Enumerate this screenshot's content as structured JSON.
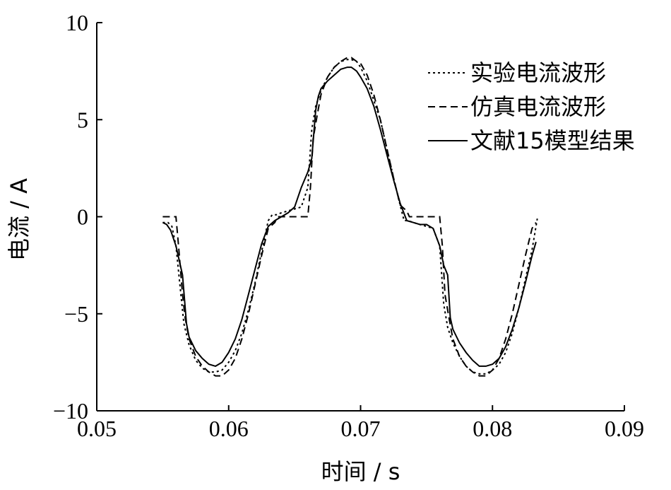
{
  "chart_data": {
    "type": "line",
    "xlabel": "时间 / s",
    "ylabel": "电流 / A",
    "xlim": [
      0.05,
      0.09
    ],
    "ylim": [
      -10,
      10
    ],
    "xticks": [
      0.05,
      0.06,
      0.07,
      0.08,
      0.09
    ],
    "xtick_labels": [
      "0.05",
      "0.06",
      "0.07",
      "0.08",
      "0.09"
    ],
    "yticks": [
      -10,
      -5,
      0,
      5,
      10
    ],
    "ytick_labels": [
      "−10",
      "−5",
      "0",
      "5",
      "10"
    ],
    "grid": false,
    "legend_position": "top-right",
    "series": [
      {
        "name": "实验电流波形",
        "style": "dotted",
        "x": [
          0.055,
          0.0554,
          0.0557,
          0.056,
          0.0563,
          0.0566,
          0.057,
          0.0575,
          0.058,
          0.0585,
          0.059,
          0.0595,
          0.06,
          0.0605,
          0.061,
          0.0615,
          0.062,
          0.0625,
          0.063,
          0.0633,
          0.0636,
          0.064,
          0.0645,
          0.065,
          0.0655,
          0.066,
          0.0663,
          0.0666,
          0.067,
          0.0675,
          0.068,
          0.0685,
          0.069,
          0.0693,
          0.0697,
          0.07,
          0.0705,
          0.071,
          0.0715,
          0.072,
          0.0725,
          0.073,
          0.0733,
          0.0736,
          0.074,
          0.0745,
          0.075,
          0.0755,
          0.076,
          0.0763,
          0.0766,
          0.077,
          0.0775,
          0.078,
          0.0785,
          0.079,
          0.0795,
          0.08,
          0.0805,
          0.081,
          0.0815,
          0.082,
          0.0825,
          0.083,
          0.0834
        ],
        "y": [
          -0.3,
          -0.3,
          -0.5,
          -1.5,
          -3.5,
          -5.5,
          -6.6,
          -7.4,
          -7.8,
          -8.0,
          -8.0,
          -7.9,
          -7.5,
          -6.9,
          -6.0,
          -4.8,
          -3.4,
          -1.8,
          -0.2,
          0.1,
          0.1,
          0.2,
          0.3,
          0.4,
          0.5,
          1.5,
          4.5,
          5.7,
          6.5,
          7.2,
          7.7,
          8.0,
          8.1,
          8.1,
          8.0,
          7.7,
          7.0,
          6.0,
          5.0,
          3.5,
          2.0,
          0.6,
          -0.2,
          -0.2,
          -0.3,
          -0.4,
          -0.5,
          -0.6,
          -1.5,
          -4.5,
          -5.7,
          -6.5,
          -7.2,
          -7.7,
          -8.0,
          -8.1,
          -8.1,
          -7.9,
          -7.6,
          -7.0,
          -6.0,
          -4.7,
          -3.2,
          -1.7,
          -0.1
        ]
      },
      {
        "name": "仿真电流波形",
        "style": "dashed",
        "x": [
          0.055,
          0.0555,
          0.056,
          0.0562,
          0.0565,
          0.0567,
          0.057,
          0.0575,
          0.058,
          0.0585,
          0.059,
          0.0595,
          0.06,
          0.0605,
          0.061,
          0.0615,
          0.062,
          0.0625,
          0.063,
          0.0635,
          0.0637,
          0.064,
          0.0645,
          0.065,
          0.0655,
          0.066,
          0.0662,
          0.0664,
          0.0667,
          0.067,
          0.0675,
          0.068,
          0.0685,
          0.069,
          0.0693,
          0.0697,
          0.07,
          0.0705,
          0.071,
          0.0715,
          0.072,
          0.0725,
          0.073,
          0.0735,
          0.0737,
          0.074,
          0.0745,
          0.075,
          0.0755,
          0.076,
          0.0762,
          0.0764,
          0.0767,
          0.077,
          0.0775,
          0.078,
          0.0785,
          0.079,
          0.0795,
          0.08,
          0.0805,
          0.081,
          0.0815,
          0.082,
          0.0825,
          0.083,
          0.0833
        ],
        "y": [
          0.0,
          0.0,
          0.0,
          -1.5,
          -4.0,
          -5.2,
          -6.3,
          -7.2,
          -7.7,
          -8.0,
          -8.2,
          -8.2,
          -7.9,
          -7.3,
          -6.3,
          -5.0,
          -3.5,
          -2.0,
          -0.6,
          -0.3,
          0.0,
          0.0,
          0.0,
          0.0,
          0.0,
          0.0,
          1.5,
          4.0,
          5.2,
          6.3,
          7.2,
          7.7,
          8.0,
          8.2,
          8.2,
          8.0,
          7.9,
          7.3,
          6.3,
          5.0,
          3.5,
          2.0,
          0.6,
          0.3,
          0.0,
          0.0,
          0.0,
          0.0,
          0.0,
          0.0,
          -1.5,
          -4.0,
          -5.2,
          -6.3,
          -7.2,
          -7.7,
          -8.0,
          -8.2,
          -8.2,
          -7.9,
          -7.3,
          -6.3,
          -5.0,
          -3.5,
          -2.0,
          -0.6,
          -0.3
        ]
      },
      {
        "name": "文献15模型结果",
        "style": "solid",
        "x": [
          0.055,
          0.0553,
          0.0556,
          0.056,
          0.0565,
          0.0568,
          0.057,
          0.0575,
          0.058,
          0.0585,
          0.059,
          0.0595,
          0.06,
          0.0605,
          0.061,
          0.0615,
          0.062,
          0.0625,
          0.063,
          0.0635,
          0.064,
          0.0645,
          0.065,
          0.0655,
          0.066,
          0.0663,
          0.0666,
          0.0668,
          0.067,
          0.0675,
          0.068,
          0.0685,
          0.069,
          0.0693,
          0.0697,
          0.07,
          0.0705,
          0.071,
          0.0715,
          0.072,
          0.0725,
          0.073,
          0.0735,
          0.074,
          0.0745,
          0.075,
          0.0755,
          0.076,
          0.0763,
          0.0766,
          0.0768,
          0.077,
          0.0775,
          0.078,
          0.0785,
          0.079,
          0.0795,
          0.08,
          0.0805,
          0.081,
          0.0815,
          0.082,
          0.0825,
          0.083,
          0.0833
        ],
        "y": [
          -0.3,
          -0.4,
          -0.7,
          -1.5,
          -3.0,
          -5.5,
          -6.2,
          -6.9,
          -7.3,
          -7.6,
          -7.7,
          -7.5,
          -7.0,
          -6.3,
          -5.3,
          -4.0,
          -2.7,
          -1.4,
          -0.5,
          -0.2,
          0.0,
          0.2,
          0.5,
          1.5,
          2.3,
          3.0,
          5.5,
          6.2,
          6.6,
          7.0,
          7.3,
          7.6,
          7.7,
          7.7,
          7.5,
          7.2,
          6.6,
          5.7,
          4.5,
          3.2,
          1.9,
          0.7,
          -0.2,
          -0.3,
          -0.4,
          -0.4,
          -0.6,
          -1.5,
          -2.5,
          -3.0,
          -5.2,
          -5.8,
          -6.5,
          -7.0,
          -7.4,
          -7.7,
          -7.7,
          -7.6,
          -7.3,
          -6.7,
          -5.8,
          -4.7,
          -3.4,
          -2.0,
          -1.3
        ]
      }
    ]
  }
}
